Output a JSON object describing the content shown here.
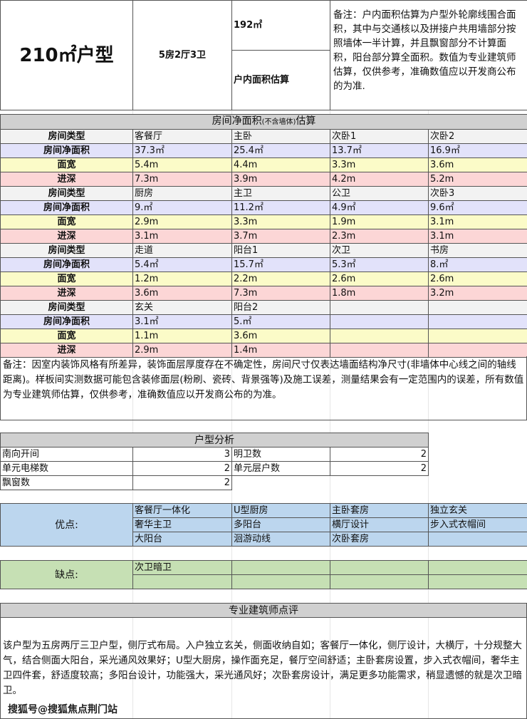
{
  "top": {
    "title": "210㎡户型",
    "layout": "5房2厅3卫",
    "area": "192㎡",
    "area_label": "户内面积估算",
    "note": "备注：户内面积估算为户型外轮廓线围合面积，其中与交通核以及拼接户共用墙部分按照墙体一半计算，并且飘窗部分不计算面积，阳台部分算全面积。数值为专业建筑师估算，仅供参考，准确数值应以开发商公布的为准."
  },
  "rooms": {
    "title_main": "房间净面积",
    "title_small": "(不含墙体)",
    "title_end": "估算",
    "row_labels": [
      "房间类型",
      "房间净面积",
      "面宽",
      "进深"
    ],
    "blocks": [
      {
        "type": [
          "客餐厅",
          "主卧",
          "次卧1",
          "次卧2"
        ],
        "area": [
          "37.3㎡",
          "25.4㎡",
          "13.7㎡",
          "16.9㎡"
        ],
        "width": [
          "5.4m",
          "4.4m",
          "3.3m",
          "3.6m"
        ],
        "depth": [
          "7.3m",
          "3.9m",
          "4.2m",
          "5.2m"
        ]
      },
      {
        "type": [
          "厨房",
          "主卫",
          "公卫",
          "次卧3"
        ],
        "area": [
          "9.㎡",
          "11.2㎡",
          "4.9㎡",
          "9.6㎡"
        ],
        "width": [
          "2.9m",
          "3.3m",
          "1.9m",
          "3.1m"
        ],
        "depth": [
          "3.1m",
          "3.7m",
          "2.3m",
          "3.1m"
        ]
      },
      {
        "type": [
          "走道",
          "阳台1",
          "次卫",
          "书房"
        ],
        "area": [
          "5.4㎡",
          "15.7㎡",
          "5.3㎡",
          "8.㎡"
        ],
        "width": [
          "1.2m",
          "2.2m",
          "2.6m",
          "2.6m"
        ],
        "depth": [
          "3.6m",
          "7.3m",
          "1.8m",
          "3.2m"
        ]
      },
      {
        "type": [
          "玄关",
          "阳台2",
          "",
          ""
        ],
        "area": [
          "3.1㎡",
          "5.㎡",
          "",
          ""
        ],
        "width": [
          "1.1m",
          "3.6m",
          "",
          ""
        ],
        "depth": [
          "2.9m",
          "1.4m",
          "",
          ""
        ]
      }
    ],
    "note": "备注：因室内装饰风格有所差异，装饰面层厚度存在不确定性，房间尺寸仅表达墙面结构净尺寸(非墙体中心线之间的轴线距离)。样板间实测数据可能包含装修面层(粉刷、瓷砖、背景强等)及施工误差，测量结果会有一定范围内的误差，所有数值为专业建筑师估算，仅供参考，准确数值应以开发商公布的为准。"
  },
  "analysis": {
    "title": "户型分析",
    "items": [
      {
        "k1": "南向开间",
        "v1": "3",
        "k2": "明卫数",
        "v2": "2"
      },
      {
        "k1": "单元电梯数",
        "v1": "2",
        "k2": "单元层户数",
        "v2": "2"
      },
      {
        "k1": "飘窗数",
        "v1": "2"
      }
    ]
  },
  "pros": {
    "label": "优点:",
    "items": [
      [
        "客餐厅一体化",
        "U型厨房",
        "主卧套房",
        "独立玄关"
      ],
      [
        "奢华主卫",
        "多阳台",
        "横厅设计",
        "步入式衣帽间"
      ],
      [
        "大阳台",
        "洄游动线",
        "次卧套房",
        ""
      ]
    ]
  },
  "cons": {
    "label": "缺点:",
    "items": [
      [
        "次卫暗卫",
        "",
        "",
        ""
      ],
      [
        "",
        "",
        "",
        ""
      ]
    ]
  },
  "review": {
    "title": "专业建筑师点评",
    "text": "该户型为五房两厅三卫户型，侧厅式布局。入户独立玄关，侧面收纳自如；客餐厅一体化，侧厅设计，大横厅，十分规整大气，结合侧面大阳台，采光通风效果好；U型大厨房，操作面充足，餐厅空间舒适；主卧套房设置，步入式衣帽间，奢华主卫四件套，舒适度较高；多阳台设计，功能强大，采光通风好；次卧套房设计，满足更多功能需求，稍显遗憾的就是次卫暗卫。"
  },
  "watermark": "搜狐号@搜狐焦点荆门站"
}
